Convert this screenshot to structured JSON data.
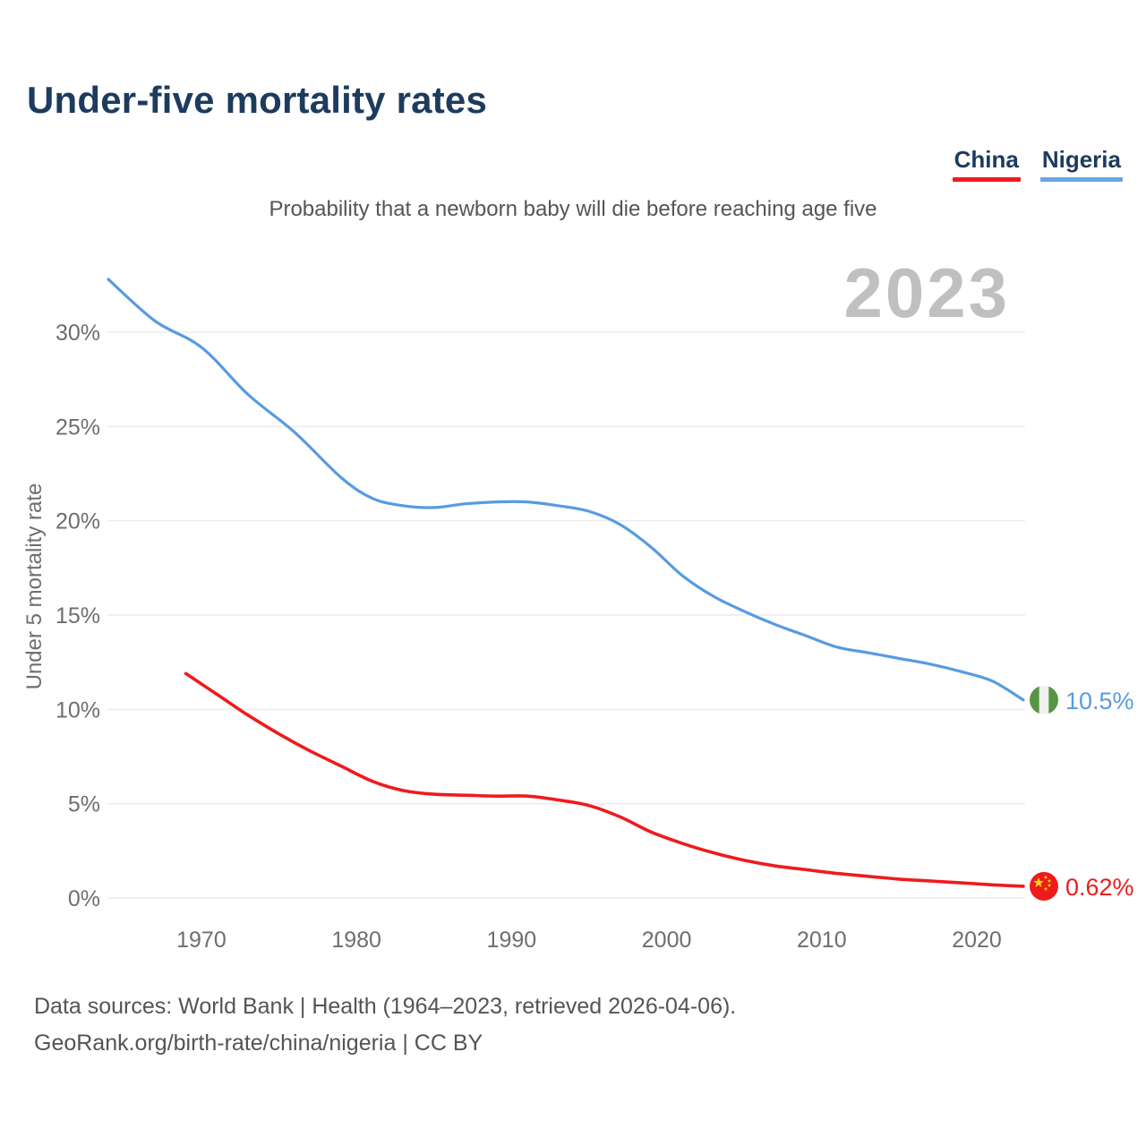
{
  "header": {
    "title": "Under-five mortality rates"
  },
  "legend": {
    "items": [
      {
        "label": "China",
        "color": "#ee1b1e"
      },
      {
        "label": "Nigeria",
        "color": "#6aa5e2"
      }
    ]
  },
  "footer": {
    "line1": "Data sources: World Bank | Health (1964–2023, retrieved 2026-04-06).",
    "line2": "GeoRank.org/birth-rate/china/nigeria | CC BY"
  },
  "chart_data": {
    "type": "line",
    "title": "Under-five mortality rates",
    "subtitle": "Probability that a newborn baby will die before reaching age five",
    "watermark": "2023",
    "xlabel": "",
    "ylabel": "Under 5 mortality rate",
    "x_range": [
      1964,
      2023
    ],
    "ylim": [
      0,
      33
    ],
    "grid": "horizontal",
    "legend_position": "top-right",
    "xticks": [
      1970,
      1980,
      1990,
      2000,
      2010,
      2020
    ],
    "yticks": [
      0,
      5,
      10,
      15,
      20,
      25,
      30
    ],
    "ytick_suffix": "%",
    "series": [
      {
        "name": "Nigeria",
        "color": "#579be2",
        "flag": "nigeria",
        "flag_colors": {
          "green": "#569544",
          "white": "#f0f0ec"
        },
        "end_label": "10.5%",
        "final_value": 10.5,
        "x": [
          1964,
          1967,
          1970,
          1973,
          1976,
          1979,
          1981,
          1983,
          1985,
          1987,
          1989,
          1991,
          1993,
          1995,
          1997,
          1999,
          2001,
          2003,
          2005,
          2007,
          2009,
          2011,
          2013,
          2015,
          2017,
          2019,
          2021,
          2023
        ],
        "values": [
          32.8,
          30.6,
          29.2,
          26.7,
          24.7,
          22.3,
          21.2,
          20.8,
          20.7,
          20.9,
          21.0,
          21.0,
          20.8,
          20.5,
          19.8,
          18.6,
          17.1,
          16.0,
          15.2,
          14.5,
          13.9,
          13.3,
          13.0,
          12.7,
          12.4,
          12.0,
          11.5,
          10.5
        ]
      },
      {
        "name": "China",
        "color": "#ee1b1e",
        "flag": "china",
        "flag_colors": {
          "red": "#ee1b1e",
          "yellow": "#ffde00"
        },
        "end_label": "0.62%",
        "final_value": 0.62,
        "x": [
          1969,
          1971,
          1973,
          1975,
          1977,
          1979,
          1981,
          1983,
          1985,
          1987,
          1989,
          1991,
          1993,
          1995,
          1997,
          1999,
          2001,
          2003,
          2005,
          2007,
          2009,
          2011,
          2013,
          2015,
          2017,
          2019,
          2021,
          2023
        ],
        "values": [
          11.9,
          10.8,
          9.7,
          8.7,
          7.8,
          7.0,
          6.2,
          5.7,
          5.5,
          5.45,
          5.4,
          5.4,
          5.2,
          4.9,
          4.3,
          3.5,
          2.9,
          2.4,
          2.0,
          1.7,
          1.5,
          1.3,
          1.15,
          1.0,
          0.9,
          0.8,
          0.7,
          0.62
        ]
      }
    ]
  }
}
